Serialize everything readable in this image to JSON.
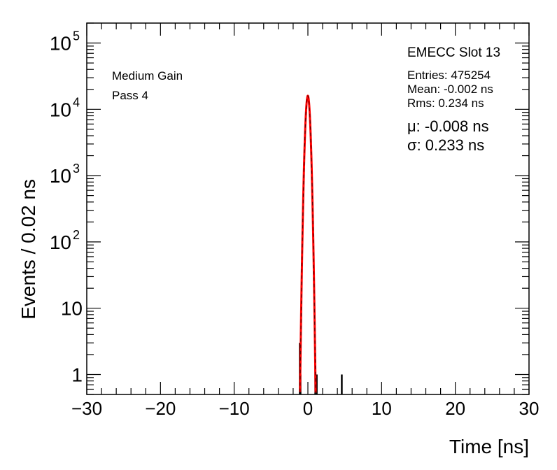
{
  "chart_data": {
    "type": "histogram",
    "xlabel": "Time [ns]",
    "ylabel": "Events / 0.02 ns",
    "xlim": [
      -30,
      30
    ],
    "ylim": [
      0.5,
      200000
    ],
    "yscale": "log",
    "x_ticks": [
      "−30",
      "−20",
      "−10",
      "0",
      "10",
      "20",
      "30"
    ],
    "x_tick_values": [
      -30,
      -20,
      -10,
      0,
      10,
      20,
      30
    ],
    "y_ticks": [
      {
        "value": 1,
        "base": "1",
        "exp": ""
      },
      {
        "value": 10,
        "base": "10",
        "exp": ""
      },
      {
        "value": 100,
        "base": "10",
        "exp": "2"
      },
      {
        "value": 1000,
        "base": "10",
        "exp": "3"
      },
      {
        "value": 10000,
        "base": "10",
        "exp": "4"
      },
      {
        "value": 100000,
        "base": "10",
        "exp": "5"
      }
    ],
    "histogram": {
      "color": "#000000",
      "outlier_bins": [
        {
          "x": -1.1,
          "y": 3
        },
        {
          "x": -1.0,
          "y": 1
        },
        {
          "x": 1.2,
          "y": 1
        },
        {
          "x": 4.6,
          "y": 1
        }
      ]
    },
    "fit": {
      "type": "gaussian",
      "color": "#ff0000",
      "mu": -0.008,
      "sigma": 0.233,
      "peak": 16000
    },
    "stats": {
      "title": "EMECC Slot 13",
      "entries": "Entries: 475254",
      "mean": "Mean: -0.002 ns",
      "rms": "Rms: 0.234 ns",
      "mu_text": "μ: -0.008 ns",
      "sigma_text": "σ: 0.233 ns"
    },
    "labels": {
      "gain": "Medium Gain",
      "pass": "Pass 4"
    }
  }
}
